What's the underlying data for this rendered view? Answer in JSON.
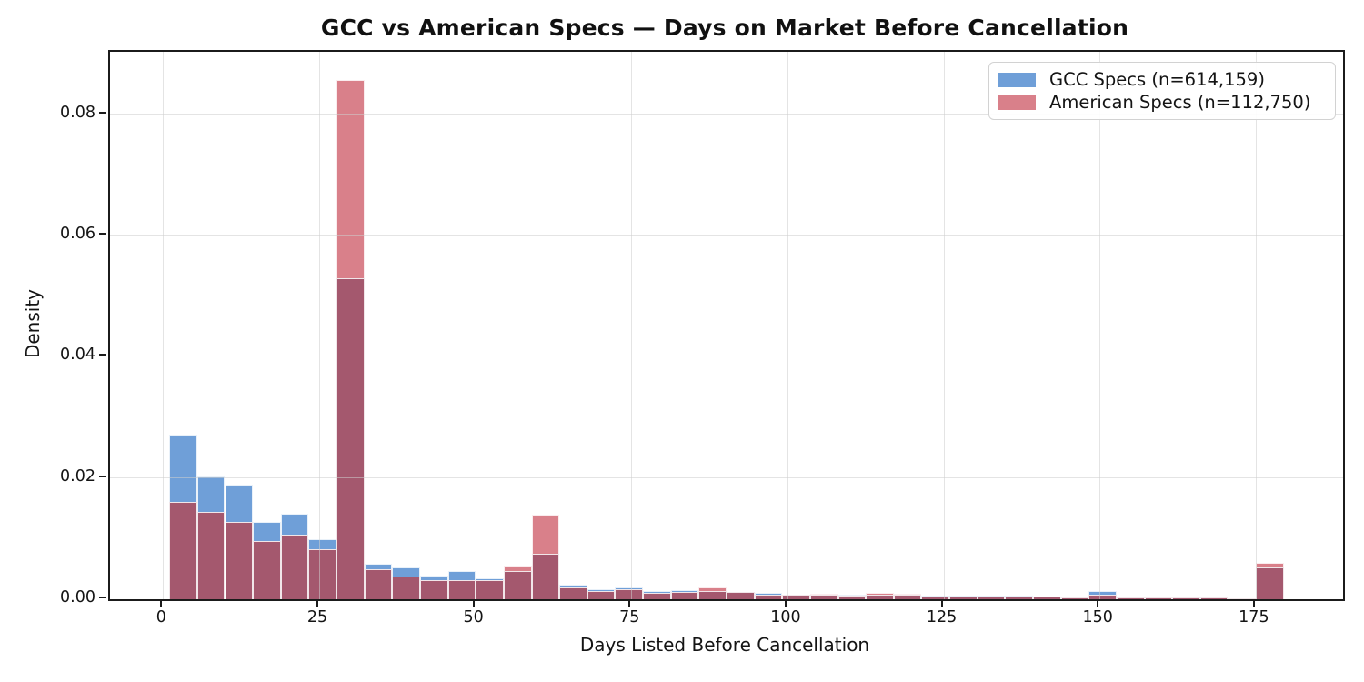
{
  "chart_data": {
    "type": "bar",
    "subtype": "overlaid-histogram-density",
    "title": "GCC vs American Specs — Days on Market Before Cancellation",
    "xlabel": "Days Listed Before Cancellation",
    "ylabel": "Density",
    "xlim": [
      -8.5,
      189
    ],
    "ylim": [
      0,
      0.0903
    ],
    "xticks": [
      0,
      25,
      50,
      75,
      100,
      125,
      150,
      175
    ],
    "yticks": [
      0,
      0.02,
      0.04,
      0.06,
      0.08
    ],
    "grid": true,
    "legend_position": "upper right",
    "bin_start": 1,
    "bin_width": 4.4625,
    "n_bins": 40,
    "overlap_color": "#a4586e",
    "series": [
      {
        "name": "GCC Specs (n=614,159)",
        "color": "#6f9fd8",
        "values": [
          0.0272,
          0.0202,
          0.0189,
          0.0128,
          0.0141,
          0.0099,
          0.0529,
          0.0058,
          0.0053,
          0.0039,
          0.0046,
          0.0035,
          0.0047,
          0.0075,
          0.0024,
          0.0017,
          0.002,
          0.0013,
          0.0015,
          0.0013,
          0.0012,
          0.0011,
          0.0008,
          0.0007,
          0.0007,
          0.0008,
          0.0007,
          0.0006,
          0.0005,
          0.0005,
          0.0005,
          0.0004,
          0.0004,
          0.0013,
          0.0005,
          0.0005,
          0.0004,
          0.0003,
          0.0002,
          0.0052
        ]
      },
      {
        "name": "American Specs (n=112,750)",
        "color": "#d9808a",
        "values": [
          0.0161,
          0.0144,
          0.0128,
          0.0096,
          0.0106,
          0.0082,
          0.0856,
          0.005,
          0.0038,
          0.0031,
          0.0031,
          0.0031,
          0.0055,
          0.014,
          0.0019,
          0.0014,
          0.0016,
          0.0011,
          0.0012,
          0.0019,
          0.0012,
          0.0007,
          0.0008,
          0.0009,
          0.0006,
          0.001,
          0.0009,
          0.0005,
          0.0004,
          0.0004,
          0.0004,
          0.0004,
          0.0003,
          0.0008,
          0.0003,
          0.0003,
          0.0003,
          0.0004,
          0.0002,
          0.006
        ]
      }
    ]
  }
}
